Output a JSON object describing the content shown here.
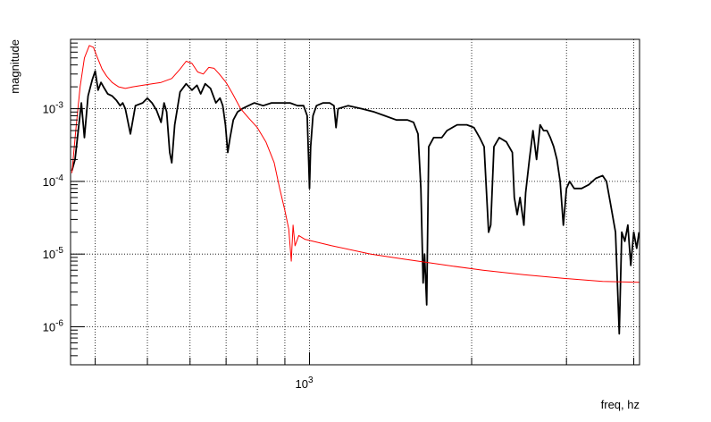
{
  "chart_data": {
    "type": "line",
    "title": "",
    "xlabel": "freq, hz",
    "ylabel": "magnitude",
    "x_scale": "log",
    "y_scale": "log",
    "xlim": [
      360,
      4100
    ],
    "ylim": [
      3e-07,
      0.009
    ],
    "grid": true,
    "x_ticks": [
      {
        "value": 1000,
        "base": "10",
        "exp": "3"
      }
    ],
    "y_ticks": [
      {
        "value": 1e-06,
        "base": "10",
        "exp": "-6"
      },
      {
        "value": 1e-05,
        "base": "10",
        "exp": "-5"
      },
      {
        "value": 0.0001,
        "base": "10",
        "exp": "-4"
      },
      {
        "value": 0.001,
        "base": "10",
        "exp": "-3"
      }
    ],
    "series": [
      {
        "color": "#000000",
        "points": [
          [
            362,
            0.00014
          ],
          [
            367,
            0.0002
          ],
          [
            372,
            0.0005
          ],
          [
            377,
            0.0012
          ],
          [
            382,
            0.0004
          ],
          [
            388,
            0.0015
          ],
          [
            395,
            0.0025
          ],
          [
            400,
            0.0033
          ],
          [
            405,
            0.0018
          ],
          [
            410,
            0.0023
          ],
          [
            416,
            0.0019
          ],
          [
            422,
            0.0016
          ],
          [
            430,
            0.0015
          ],
          [
            438,
            0.0013
          ],
          [
            445,
            0.0011
          ],
          [
            450,
            0.0012
          ],
          [
            455,
            0.001
          ],
          [
            465,
            0.00045
          ],
          [
            475,
            0.0011
          ],
          [
            490,
            0.0012
          ],
          [
            500,
            0.0014
          ],
          [
            510,
            0.0012
          ],
          [
            520,
            0.00095
          ],
          [
            530,
            0.00065
          ],
          [
            537,
            0.0012
          ],
          [
            543,
            0.0009
          ],
          [
            550,
            0.00025
          ],
          [
            555,
            0.00018
          ],
          [
            562,
            0.0006
          ],
          [
            575,
            0.0017
          ],
          [
            590,
            0.0022
          ],
          [
            605,
            0.0018
          ],
          [
            618,
            0.0021
          ],
          [
            628,
            0.0016
          ],
          [
            640,
            0.0022
          ],
          [
            655,
            0.0019
          ],
          [
            670,
            0.0012
          ],
          [
            682,
            0.0014
          ],
          [
            690,
            0.0011
          ],
          [
            698,
            0.0006
          ],
          [
            705,
            0.00025
          ],
          [
            712,
            0.0004
          ],
          [
            722,
            0.0007
          ],
          [
            735,
            0.0009
          ],
          [
            750,
            0.001
          ],
          [
            770,
            0.0011
          ],
          [
            790,
            0.0012
          ],
          [
            820,
            0.0011
          ],
          [
            850,
            0.0012
          ],
          [
            880,
            0.0012
          ],
          [
            920,
            0.0012
          ],
          [
            950,
            0.0011
          ],
          [
            975,
            0.0011
          ],
          [
            990,
            0.0008
          ],
          [
            996,
            0.0002
          ],
          [
            1000,
            8e-05
          ],
          [
            1005,
            0.0003
          ],
          [
            1015,
            0.0008
          ],
          [
            1030,
            0.0011
          ],
          [
            1060,
            0.0012
          ],
          [
            1090,
            0.0012
          ],
          [
            1110,
            0.0011
          ],
          [
            1120,
            0.00055
          ],
          [
            1130,
            0.001
          ],
          [
            1180,
            0.0011
          ],
          [
            1250,
            0.001
          ],
          [
            1320,
            0.0009
          ],
          [
            1380,
            0.0008
          ],
          [
            1450,
            0.0007
          ],
          [
            1520,
            0.0007
          ],
          [
            1560,
            0.00065
          ],
          [
            1590,
            0.00045
          ],
          [
            1610,
            8e-05
          ],
          [
            1625,
            4e-06
          ],
          [
            1635,
            1e-05
          ],
          [
            1650,
            2e-06
          ],
          [
            1665,
            0.0003
          ],
          [
            1700,
            0.0004
          ],
          [
            1760,
            0.0004
          ],
          [
            1800,
            0.0005
          ],
          [
            1880,
            0.0006
          ],
          [
            1960,
            0.0006
          ],
          [
            2020,
            0.00055
          ],
          [
            2070,
            0.0004
          ],
          [
            2110,
            0.0003
          ],
          [
            2150,
            2e-05
          ],
          [
            2170,
            2.5e-05
          ],
          [
            2200,
            0.0003
          ],
          [
            2250,
            0.0004
          ],
          [
            2320,
            0.00035
          ],
          [
            2380,
            0.00025
          ],
          [
            2400,
            6e-05
          ],
          [
            2430,
            3.5e-05
          ],
          [
            2460,
            6e-05
          ],
          [
            2500,
            2.5e-05
          ],
          [
            2520,
            7e-05
          ],
          [
            2560,
            0.0002
          ],
          [
            2600,
            0.0005
          ],
          [
            2640,
            0.0002
          ],
          [
            2680,
            0.0006
          ],
          [
            2720,
            0.0005
          ],
          [
            2760,
            0.0005
          ],
          [
            2800,
            0.0004
          ],
          [
            2840,
            0.0003
          ],
          [
            2880,
            0.0002
          ],
          [
            2920,
            0.0001
          ],
          [
            2960,
            2.5e-05
          ],
          [
            3000,
            8e-05
          ],
          [
            3040,
            0.0001
          ],
          [
            3100,
            8e-05
          ],
          [
            3200,
            8e-05
          ],
          [
            3300,
            9e-05
          ],
          [
            3400,
            0.00011
          ],
          [
            3500,
            0.00012
          ],
          [
            3560,
            0.0001
          ],
          [
            3620,
            5e-05
          ],
          [
            3700,
            2e-05
          ],
          [
            3760,
            8e-07
          ],
          [
            3800,
            2e-05
          ],
          [
            3850,
            1.5e-05
          ],
          [
            3900,
            2.5e-05
          ],
          [
            3950,
            7e-06
          ],
          [
            4000,
            2e-05
          ],
          [
            4050,
            1.2e-05
          ],
          [
            4090,
            2e-05
          ]
        ]
      },
      {
        "color": "#ff0000",
        "points": [
          [
            362,
            0.00013
          ],
          [
            368,
            0.0005
          ],
          [
            375,
            0.002
          ],
          [
            382,
            0.005
          ],
          [
            390,
            0.0074
          ],
          [
            397,
            0.007
          ],
          [
            404,
            0.005
          ],
          [
            412,
            0.0035
          ],
          [
            420,
            0.0028
          ],
          [
            430,
            0.0023
          ],
          [
            442,
            0.002
          ],
          [
            455,
            0.0019
          ],
          [
            470,
            0.002
          ],
          [
            490,
            0.0021
          ],
          [
            510,
            0.0022
          ],
          [
            530,
            0.0023
          ],
          [
            555,
            0.0026
          ],
          [
            575,
            0.0035
          ],
          [
            590,
            0.0045
          ],
          [
            605,
            0.0042
          ],
          [
            620,
            0.0032
          ],
          [
            635,
            0.003
          ],
          [
            650,
            0.0037
          ],
          [
            665,
            0.0036
          ],
          [
            680,
            0.003
          ],
          [
            700,
            0.0023
          ],
          [
            720,
            0.0016
          ],
          [
            745,
            0.001
          ],
          [
            770,
            0.00075
          ],
          [
            800,
            0.00055
          ],
          [
            830,
            0.00035
          ],
          [
            860,
            0.00018
          ],
          [
            880,
            8e-05
          ],
          [
            900,
            4e-05
          ],
          [
            915,
            2.2e-05
          ],
          [
            925,
            8e-06
          ],
          [
            932,
            2.5e-05
          ],
          [
            940,
            1.3e-05
          ],
          [
            955,
            1.8e-05
          ],
          [
            980,
            1.6e-05
          ],
          [
            1100,
            1.3e-05
          ],
          [
            1300,
            1e-05
          ],
          [
            1500,
            8.5e-06
          ],
          [
            1800,
            7e-06
          ],
          [
            2100,
            6e-06
          ],
          [
            2500,
            5.2e-06
          ],
          [
            3000,
            4.6e-06
          ],
          [
            3500,
            4.2e-06
          ],
          [
            4090,
            4.1e-06
          ]
        ]
      }
    ]
  }
}
